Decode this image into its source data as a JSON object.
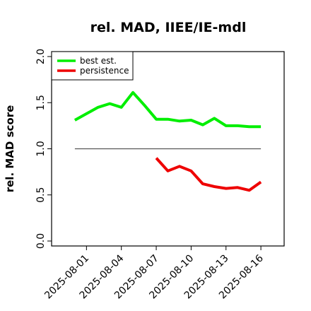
{
  "chart_data": {
    "type": "line",
    "title": "rel. MAD, IIEE/IE-mdl",
    "xlabel": "",
    "ylabel": "rel. MAD score",
    "ylim": [
      0,
      2
    ],
    "yticks": [
      "0.0",
      "0.5",
      "1.0",
      "1.5",
      "2.0"
    ],
    "x_tick_labels": [
      "2025-08-01",
      "2025-08-04",
      "2025-08-07",
      "2025-08-10",
      "2025-08-13",
      "2025-08-16"
    ],
    "x_ticks": [
      "2025-08-01",
      "2025-08-04",
      "2025-08-07",
      "2025-08-10",
      "2025-08-13",
      "2025-08-16"
    ],
    "xlim": [
      "2025-07-29",
      "2025-08-18"
    ],
    "x": [
      "2025-07-31",
      "2025-08-01",
      "2025-08-02",
      "2025-08-03",
      "2025-08-04",
      "2025-08-05",
      "2025-08-06",
      "2025-08-07",
      "2025-08-08",
      "2025-08-09",
      "2025-08-10",
      "2025-08-11",
      "2025-08-12",
      "2025-08-13",
      "2025-08-14",
      "2025-08-15",
      "2025-08-16"
    ],
    "series": [
      {
        "name": "best est.",
        "color": "#00ee00",
        "values": [
          1.31,
          1.38,
          1.45,
          1.49,
          1.45,
          1.61,
          1.47,
          1.32,
          1.32,
          1.3,
          1.31,
          1.26,
          1.33,
          1.25,
          1.25,
          1.24,
          1.24
        ]
      },
      {
        "name": "persistence",
        "color": "#ee0000",
        "values": [
          null,
          null,
          null,
          null,
          null,
          null,
          null,
          0.9,
          0.76,
          0.81,
          0.76,
          0.62,
          0.59,
          0.57,
          0.58,
          0.55,
          0.64
        ]
      }
    ],
    "reference_line": {
      "y": 1.0,
      "x_from": "2025-07-31",
      "x_to": "2025-08-16",
      "color": "#555555"
    },
    "legend": {
      "placement": "top-left"
    },
    "grid": false
  }
}
